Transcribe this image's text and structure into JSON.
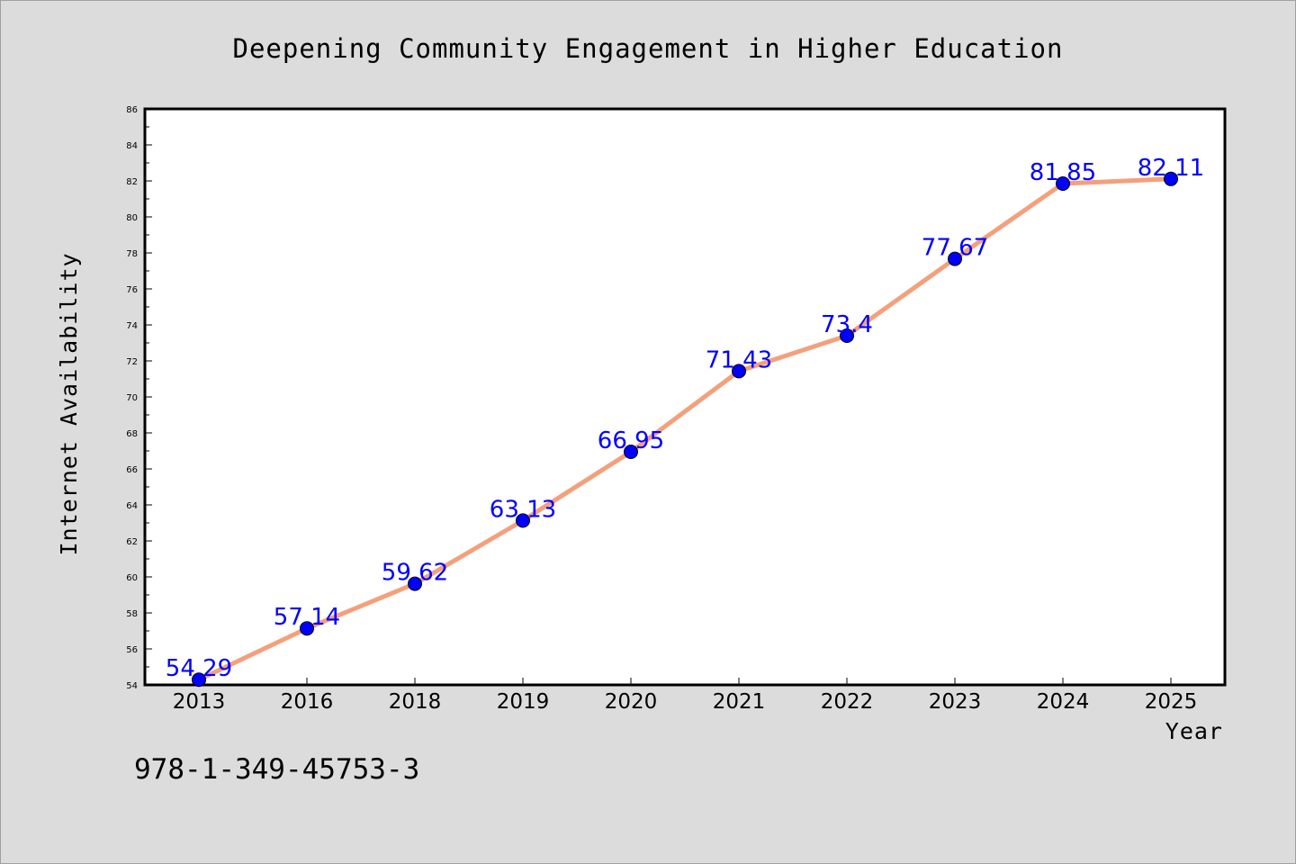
{
  "chart_data": {
    "type": "line",
    "title": "Deepening Community Engagement in Higher Education",
    "xlabel": "Year",
    "ylabel": "Internet Availability",
    "categories": [
      "2013",
      "2016",
      "2018",
      "2019",
      "2020",
      "2021",
      "2022",
      "2023",
      "2024",
      "2025"
    ],
    "series": [
      {
        "values": [
          54.29,
          57.14,
          59.62,
          63.13,
          66.95,
          71.43,
          73.4,
          77.67,
          81.85,
          82.11
        ],
        "labels": [
          "54.29",
          "57.14",
          "59.62",
          "63.13",
          "66.95",
          "71.43",
          "73.4",
          "77.67",
          "81.85",
          "82.11"
        ],
        "line_color": "#f4a07c",
        "marker_color": "#0000ff"
      }
    ],
    "ylim": [
      54,
      86
    ],
    "yticks": [
      "54",
      "56",
      "58",
      "60",
      "62",
      "64",
      "66",
      "68",
      "70",
      "72",
      "74",
      "76",
      "78",
      "80",
      "82",
      "84",
      "86"
    ],
    "grid": false,
    "legend": "none"
  },
  "footer": {
    "isbn": "978-1-349-45753-3"
  }
}
